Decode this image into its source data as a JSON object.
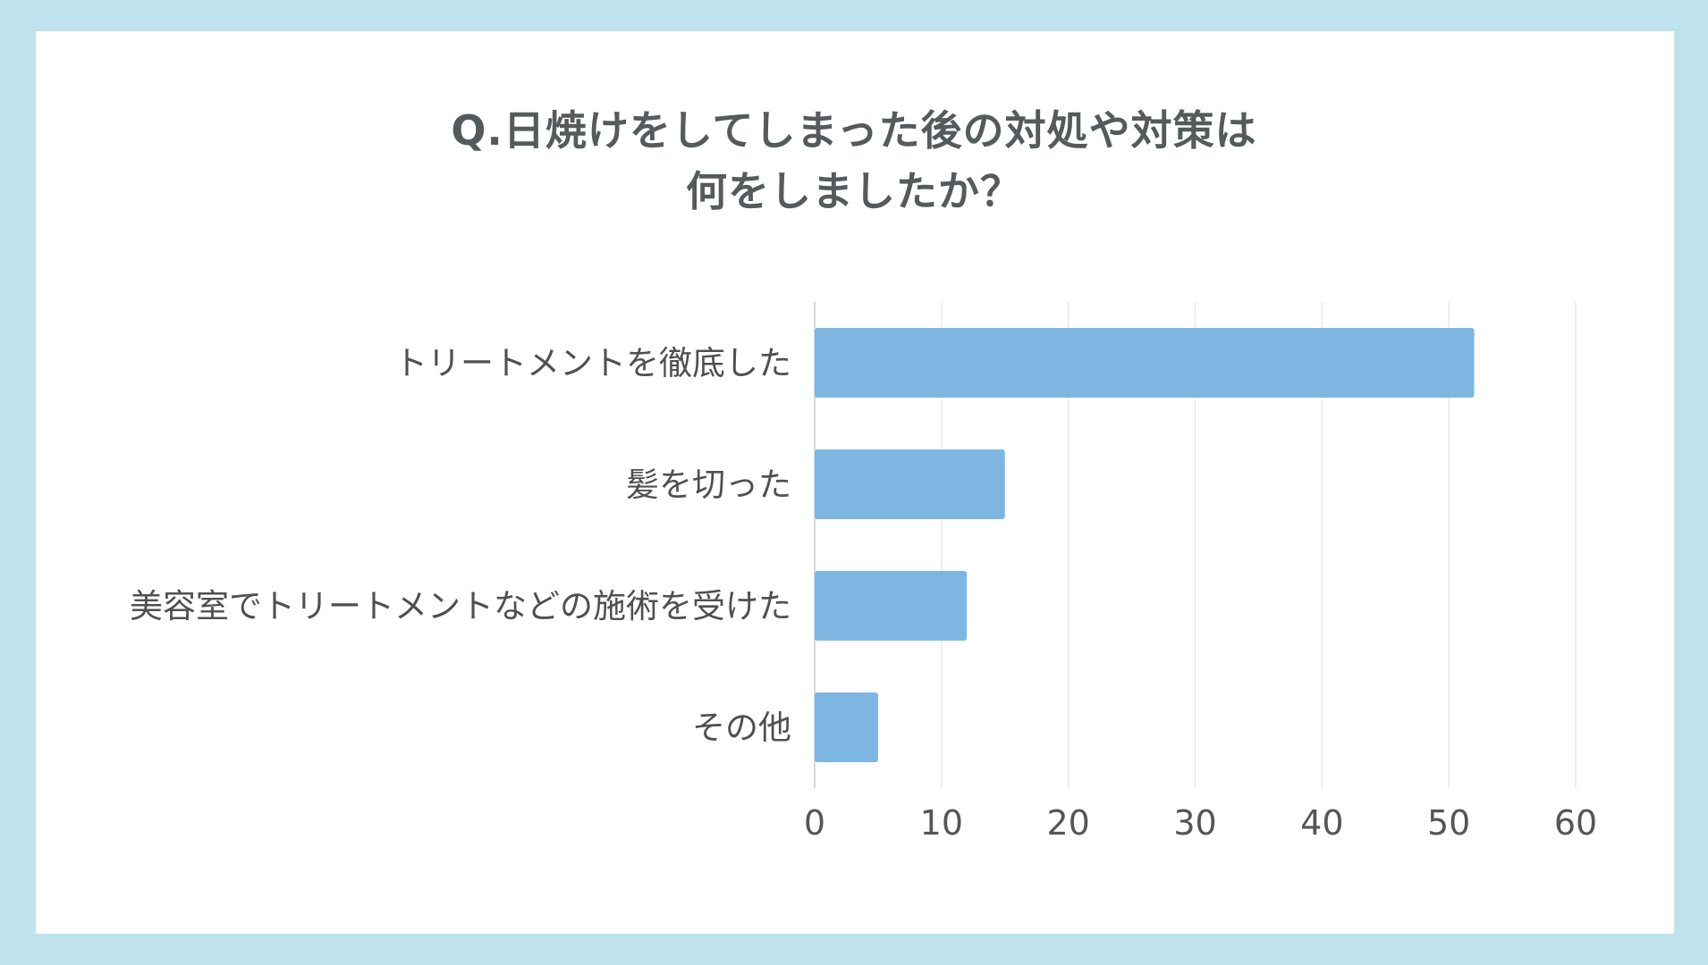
{
  "chart_data": {
    "type": "bar",
    "orientation": "horizontal",
    "title_lines": [
      "Q.日焼けをしてしまった後の対処や対策は",
      "何をしましたか？"
    ],
    "categories": [
      "トリートメントを徹底した",
      "髪を切った",
      "美容室でトリートメントなどの施術を受けた",
      "その他"
    ],
    "values": [
      52,
      15,
      12,
      5
    ],
    "xlim": [
      0,
      60
    ],
    "xticks": [
      "0",
      "10",
      "20",
      "30",
      "40",
      "50",
      "60"
    ],
    "grid": true,
    "bar_color": "#7db6e1",
    "grid_color": "#e8e8e8"
  },
  "colors": {
    "frame_border": "#bfe3ec",
    "title": "#555a5c"
  }
}
